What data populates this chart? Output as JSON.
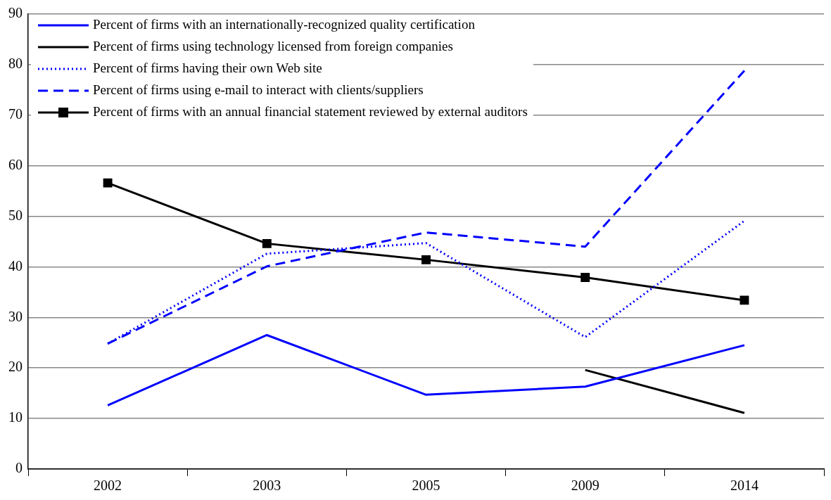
{
  "chart_data": {
    "type": "line",
    "categories": [
      "2002",
      "2003",
      "2005",
      "2009",
      "2014"
    ],
    "ylim": [
      0,
      90
    ],
    "yticks": [
      0,
      10,
      20,
      30,
      40,
      50,
      60,
      70,
      80,
      90
    ],
    "grid": "y",
    "legend": "top left",
    "series": [
      {
        "name": "Percent of firms with an internationally-recognized quality certification",
        "color": "#0000ff",
        "line_style": "solid",
        "marker": "none",
        "values": [
          12.6,
          26.5,
          14.7,
          16.3,
          24.5
        ]
      },
      {
        "name": "Percent of firms using technology licensed from foreign companies",
        "color": "#000000",
        "line_style": "solid",
        "marker": "none",
        "values": [
          null,
          null,
          null,
          19.6,
          11.1
        ]
      },
      {
        "name": "Percent of firms having their own Web site",
        "color": "#0000ff",
        "line_style": "dotted",
        "marker": "none",
        "values": [
          24.8,
          42.6,
          44.7,
          26.1,
          49.1
        ]
      },
      {
        "name": "Percent of firms using e-mail to interact with clients/suppliers",
        "color": "#0000ff",
        "line_style": "dashed",
        "marker": "none",
        "values": [
          24.8,
          40.1,
          46.8,
          44.0,
          78.8
        ]
      },
      {
        "name": "Percent of firms with an annual financial statement reviewed by external auditors",
        "color": "#000000",
        "line_style": "solid",
        "marker": "square",
        "values": [
          56.6,
          44.6,
          41.4,
          37.9,
          33.4
        ]
      }
    ]
  }
}
